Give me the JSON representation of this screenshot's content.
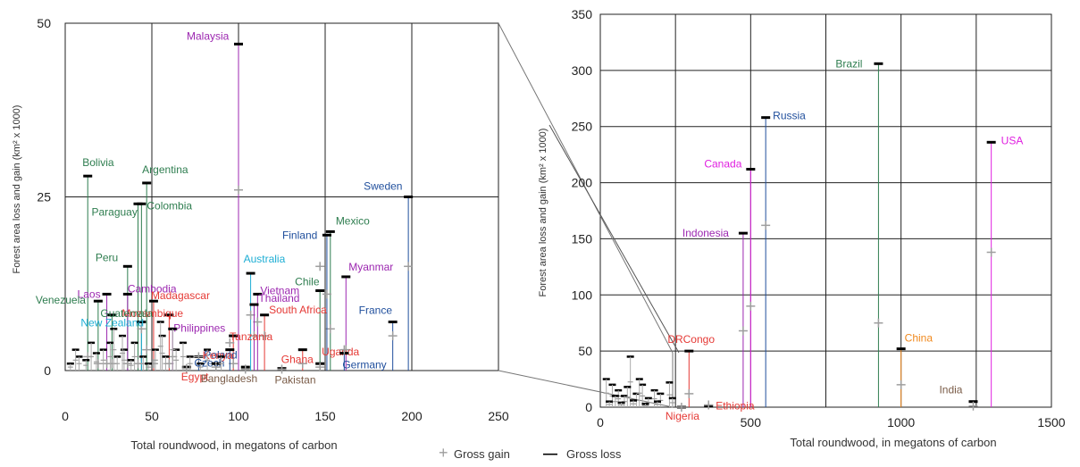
{
  "colors": {
    "gain": "#9e9e9e",
    "loss": "#000000",
    "green": "#2e7d4f",
    "purple": "#9c27b0",
    "red": "#e53935",
    "blue": "#1f4e9c",
    "cyan": "#1eaed4",
    "brown": "#7a5c48",
    "orange": "#f0891e",
    "magenta": "#e020e0"
  },
  "legend": {
    "gain_label": "Gross gain",
    "loss_label": "Gross loss",
    "gain_symbol": "+",
    "loss_symbol": "—"
  },
  "chart_data": [
    {
      "type": "scatter",
      "xlabel": "Total roundwood, in megatons of carbon",
      "ylabel": "Forest area loss and gain (km² x 1000)",
      "xlim": [
        0,
        250
      ],
      "ylim": [
        0,
        50
      ],
      "xticks": [
        "0",
        "50",
        "100",
        "150",
        "200",
        "250"
      ],
      "yticks": [
        "0",
        "25",
        "50"
      ],
      "grid": true,
      "points": [
        {
          "label": "Malaysia",
          "x": 100,
          "loss": 47,
          "gain": 26,
          "color": "purple"
        },
        {
          "label": "Bolivia",
          "x": 13,
          "loss": 28,
          "gain": 2,
          "color": "green"
        },
        {
          "label": "Argentina",
          "x": 47,
          "loss": 27,
          "gain": 3,
          "color": "green"
        },
        {
          "label": "Paraguay",
          "x": 42,
          "loss": 24,
          "gain": 1,
          "color": "green"
        },
        {
          "label": "Colombia",
          "x": 44,
          "loss": 24,
          "gain": 2,
          "color": "green"
        },
        {
          "label": "Sweden",
          "x": 198,
          "loss": 25,
          "gain": 15,
          "color": "blue"
        },
        {
          "label": "Mexico",
          "x": 153,
          "loss": 20,
          "gain": 6,
          "color": "green"
        },
        {
          "label": "Finland",
          "x": 151,
          "loss": 19.5,
          "gain": 11,
          "color": "blue"
        },
        {
          "label": "Chile",
          "x": 147,
          "loss": 11.5,
          "gain": 15,
          "color": "green"
        },
        {
          "label": "Myanmar",
          "x": 162,
          "loss": 13.5,
          "gain": 3,
          "color": "purple"
        },
        {
          "label": "Peru",
          "x": 36,
          "loss": 15,
          "gain": 1,
          "color": "green"
        },
        {
          "label": "Australia",
          "x": 107,
          "loss": 14,
          "gain": 8,
          "color": "cyan"
        },
        {
          "label": "Vietnam",
          "x": 111,
          "loss": 11,
          "gain": 7,
          "color": "purple"
        },
        {
          "label": "Thailand",
          "x": 109,
          "loss": 9.5,
          "gain": 5,
          "color": "purple"
        },
        {
          "label": "South Africa",
          "x": 115,
          "loss": 8,
          "gain": 5,
          "color": "red"
        },
        {
          "label": "Laos",
          "x": 24,
          "loss": 11,
          "gain": 1,
          "color": "purple"
        },
        {
          "label": "Cambodia",
          "x": 36,
          "loss": 11,
          "gain": 1,
          "color": "purple"
        },
        {
          "label": "Madagascar",
          "x": 51,
          "loss": 10,
          "gain": 1,
          "color": "red"
        },
        {
          "label": "Venezuela",
          "x": 19,
          "loss": 10,
          "gain": 1,
          "color": "green"
        },
        {
          "label": "Mozambique",
          "x": 60,
          "loss": 8,
          "gain": 1,
          "color": "red"
        },
        {
          "label": "Guatemala",
          "x": 27,
          "loss": 8,
          "gain": 1,
          "color": "green"
        },
        {
          "label": "New Zealand",
          "x": 44,
          "loss": 7,
          "gain": 6,
          "color": "cyan"
        },
        {
          "label": "Philippines",
          "x": 62,
          "loss": 6,
          "gain": 2,
          "color": "purple"
        },
        {
          "label": "Tanzania",
          "x": 97,
          "loss": 5,
          "gain": 1,
          "color": "red"
        },
        {
          "label": "France",
          "x": 189,
          "loss": 7,
          "gain": 5,
          "color": "blue"
        },
        {
          "label": "Poland",
          "x": 95,
          "loss": 3,
          "gain": 4,
          "color": "blue"
        },
        {
          "label": "Czech",
          "x": 77,
          "loss": 2,
          "gain": 2,
          "color": "blue"
        },
        {
          "label": "Ghana",
          "x": 137,
          "loss": 3,
          "gain": 1,
          "color": "red"
        },
        {
          "label": "Uganda",
          "x": 147,
          "loss": 1,
          "gain": 0.5,
          "color": "red"
        },
        {
          "label": "Germany",
          "x": 161,
          "loss": 2.5,
          "gain": 3,
          "color": "blue"
        },
        {
          "label": "Kenya",
          "x": 87,
          "loss": 1,
          "gain": 0.5,
          "color": "red"
        },
        {
          "label": "Egypt",
          "x": 70,
          "loss": 0.5,
          "gain": 0.3,
          "color": "red"
        },
        {
          "label": "Bangladesh",
          "x": 104,
          "loss": 0.5,
          "gain": 0.2,
          "color": "brown"
        },
        {
          "label": "Pakistan",
          "x": 125,
          "loss": 0.3,
          "gain": 0.2,
          "color": "brown"
        }
      ]
    },
    {
      "type": "scatter",
      "xlabel": "Total roundwood, in megatons of carbon",
      "ylabel": "Forest area loss and gain (km² x 1000)",
      "xlim": [
        0,
        1500
      ],
      "ylim": [
        0,
        350
      ],
      "xticks": [
        "0",
        "500",
        "1000",
        "1500"
      ],
      "yticks": [
        "0",
        "50",
        "100",
        "150",
        "200",
        "250",
        "300",
        "350"
      ],
      "grid": true,
      "points": [
        {
          "label": "Brazil",
          "x": 925,
          "loss": 306,
          "gain": 75,
          "color": "green"
        },
        {
          "label": "Russia",
          "x": 550,
          "loss": 258,
          "gain": 162,
          "color": "blue"
        },
        {
          "label": "USA",
          "x": 1300,
          "loss": 236,
          "gain": 138,
          "color": "magenta"
        },
        {
          "label": "Canada",
          "x": 500,
          "loss": 212,
          "gain": 90,
          "color": "magenta"
        },
        {
          "label": "Indonesia",
          "x": 475,
          "loss": 155,
          "gain": 68,
          "color": "purple"
        },
        {
          "label": "DRCongo",
          "x": 295,
          "loss": 50,
          "gain": 12,
          "color": "red"
        },
        {
          "label": "China",
          "x": 1000,
          "loss": 52,
          "gain": 20,
          "color": "orange"
        },
        {
          "label": "India",
          "x": 1240,
          "loss": 5,
          "gain": 1,
          "color": "brown"
        },
        {
          "label": "Ethiopia",
          "x": 360,
          "loss": 1,
          "gain": 2,
          "color": "red"
        },
        {
          "label": "Nigeria",
          "x": 270,
          "loss": 0,
          "gain": 0,
          "color": "red"
        }
      ]
    }
  ]
}
